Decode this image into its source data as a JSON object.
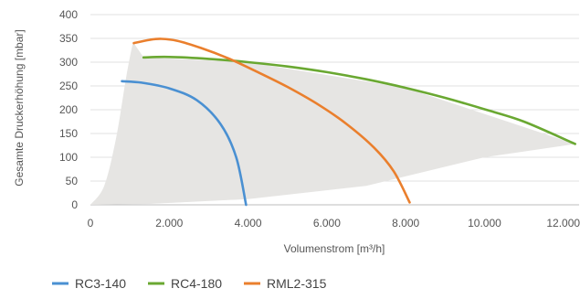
{
  "chart_data": {
    "type": "line",
    "ylabel": "Gesamte Druckerhöhung [mbar]",
    "xlabel": "Volumenstrom [m³/h]",
    "xlim": [
      0,
      12400
    ],
    "ylim": [
      0,
      400
    ],
    "x_ticks": [
      0,
      2000,
      4000,
      6000,
      8000,
      10000,
      12000
    ],
    "x_tick_labels": [
      "0",
      "2.000",
      "4.000",
      "6.000",
      "8.000",
      "10.000",
      "12.000"
    ],
    "y_ticks": [
      0,
      50,
      100,
      150,
      200,
      250,
      300,
      350,
      400
    ],
    "y_tick_labels": [
      "0",
      "50",
      "100",
      "150",
      "200",
      "250",
      "300",
      "350",
      "400"
    ],
    "grid": "horizontal",
    "legend_position": "bottom-left",
    "envelope_color": "#e6e5e3",
    "series": [
      {
        "name": "RC3-140",
        "color": "#4a90d2",
        "points": [
          [
            800,
            260
          ],
          [
            1300,
            257
          ],
          [
            2000,
            245
          ],
          [
            2700,
            220
          ],
          [
            3300,
            170
          ],
          [
            3700,
            100
          ],
          [
            3950,
            0
          ]
        ]
      },
      {
        "name": "RC4-180",
        "color": "#6aa832",
        "points": [
          [
            1350,
            310
          ],
          [
            2000,
            311
          ],
          [
            3000,
            307
          ],
          [
            4000,
            300
          ],
          [
            5000,
            291
          ],
          [
            6000,
            279
          ],
          [
            7000,
            264
          ],
          [
            8000,
            246
          ],
          [
            9000,
            225
          ],
          [
            10000,
            201
          ],
          [
            11000,
            175
          ],
          [
            12300,
            128
          ]
        ]
      },
      {
        "name": "RML2-315",
        "color": "#ea7f2d",
        "points": [
          [
            1100,
            340
          ],
          [
            1500,
            347
          ],
          [
            1800,
            349
          ],
          [
            2200,
            345
          ],
          [
            2800,
            330
          ],
          [
            3500,
            308
          ],
          [
            4200,
            281
          ],
          [
            5000,
            248
          ],
          [
            5800,
            210
          ],
          [
            6500,
            170
          ],
          [
            7200,
            120
          ],
          [
            7700,
            70
          ],
          [
            8100,
            5
          ]
        ]
      }
    ]
  }
}
